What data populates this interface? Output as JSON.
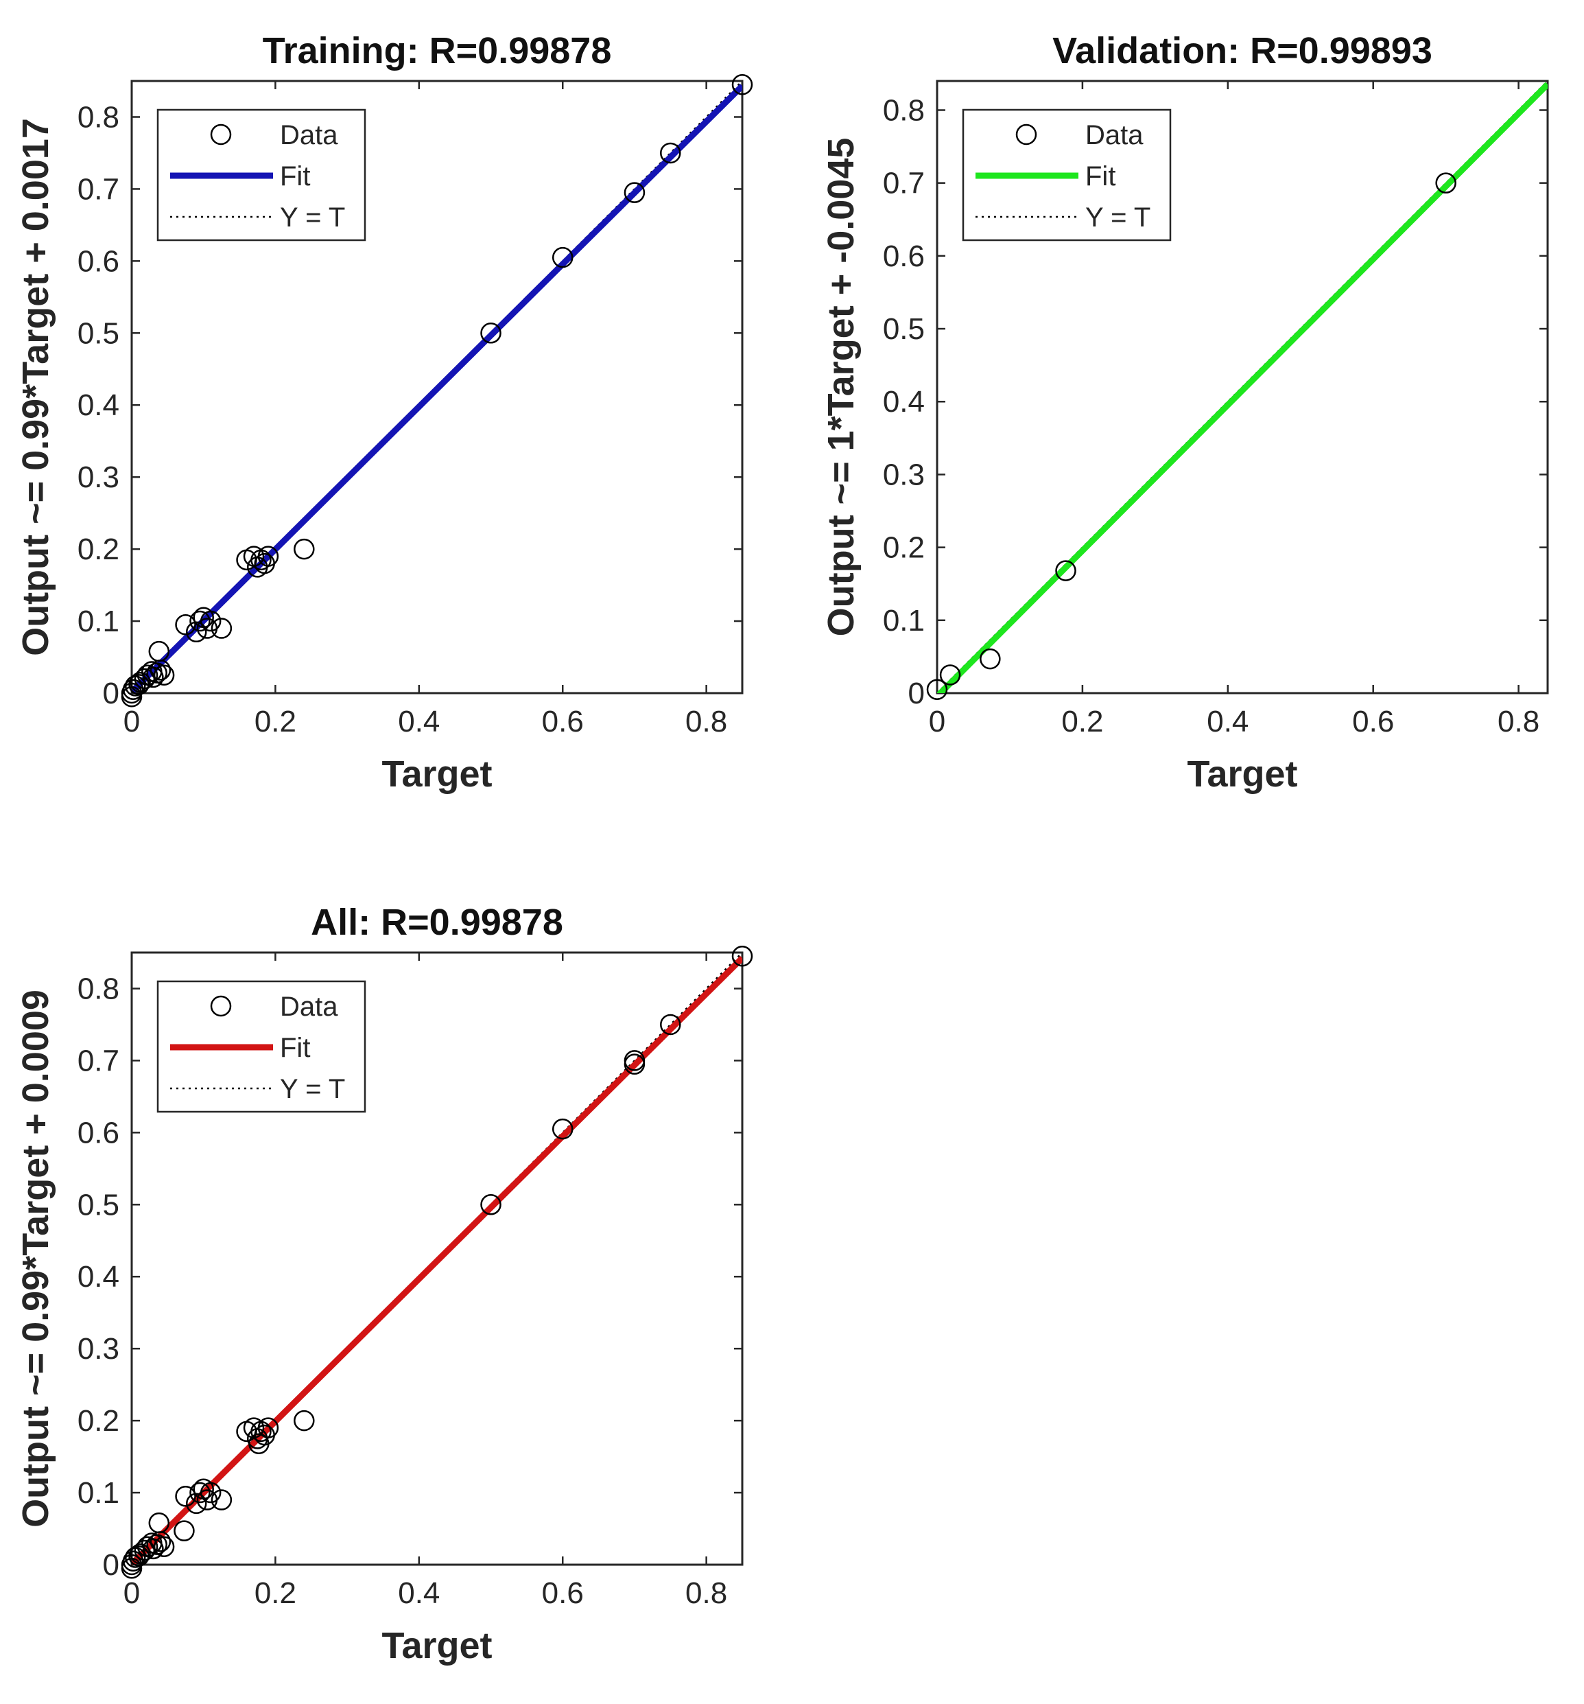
{
  "legend": {
    "data_label": "Data",
    "fit_label": "Fit",
    "yt_label": "Y = T"
  },
  "chart_data": [
    {
      "type": "scatter",
      "title": "Training: R=0.99878",
      "xlabel": "Target",
      "ylabel": "Output ~= 0.99*Target + 0.0017",
      "xlim": [
        0,
        0.85
      ],
      "ylim": [
        0,
        0.85
      ],
      "xticks": [
        "0",
        "0.2",
        "0.4",
        "0.6",
        "0.8"
      ],
      "yticks": [
        "0",
        "0.1",
        "0.2",
        "0.3",
        "0.4",
        "0.5",
        "0.6",
        "0.7",
        "0.8"
      ],
      "grid": false,
      "legend_position": "top-left",
      "fit": {
        "slope": 0.99,
        "intercept": 0.0017,
        "color": "#1414B4"
      },
      "points": [
        {
          "x": 0.0,
          "y": -0.005
        },
        {
          "x": 0.0,
          "y": 0.0
        },
        {
          "x": 0.002,
          "y": 0.005
        },
        {
          "x": 0.005,
          "y": 0.01
        },
        {
          "x": 0.01,
          "y": 0.012
        },
        {
          "x": 0.012,
          "y": 0.015
        },
        {
          "x": 0.018,
          "y": 0.02
        },
        {
          "x": 0.022,
          "y": 0.025
        },
        {
          "x": 0.028,
          "y": 0.03
        },
        {
          "x": 0.03,
          "y": 0.022
        },
        {
          "x": 0.035,
          "y": 0.028
        },
        {
          "x": 0.038,
          "y": 0.058
        },
        {
          "x": 0.04,
          "y": 0.032
        },
        {
          "x": 0.045,
          "y": 0.025
        },
        {
          "x": 0.075,
          "y": 0.095
        },
        {
          "x": 0.09,
          "y": 0.085
        },
        {
          "x": 0.095,
          "y": 0.1
        },
        {
          "x": 0.1,
          "y": 0.105
        },
        {
          "x": 0.105,
          "y": 0.09
        },
        {
          "x": 0.11,
          "y": 0.1
        },
        {
          "x": 0.125,
          "y": 0.09
        },
        {
          "x": 0.16,
          "y": 0.185
        },
        {
          "x": 0.17,
          "y": 0.19
        },
        {
          "x": 0.175,
          "y": 0.175
        },
        {
          "x": 0.18,
          "y": 0.185
        },
        {
          "x": 0.185,
          "y": 0.18
        },
        {
          "x": 0.19,
          "y": 0.19
        },
        {
          "x": 0.24,
          "y": 0.2
        },
        {
          "x": 0.5,
          "y": 0.5
        },
        {
          "x": 0.6,
          "y": 0.605
        },
        {
          "x": 0.7,
          "y": 0.695
        },
        {
          "x": 0.75,
          "y": 0.75
        },
        {
          "x": 0.85,
          "y": 0.845
        }
      ]
    },
    {
      "type": "scatter",
      "title": "Validation: R=0.99893",
      "xlabel": "Target",
      "ylabel": "Output ~= 1*Target + -0.0045",
      "xlim": [
        0,
        0.84
      ],
      "ylim": [
        0,
        0.84
      ],
      "xticks": [
        "0",
        "0.2",
        "0.4",
        "0.6",
        "0.8"
      ],
      "yticks": [
        "0",
        "0.1",
        "0.2",
        "0.3",
        "0.4",
        "0.5",
        "0.6",
        "0.7",
        "0.8"
      ],
      "grid": false,
      "legend_position": "top-left",
      "fit": {
        "slope": 1,
        "intercept": -0.0045,
        "color": "#1EE61E"
      },
      "points": [
        {
          "x": 0.0,
          "y": 0.005
        },
        {
          "x": 0.018,
          "y": 0.025
        },
        {
          "x": 0.073,
          "y": 0.047
        },
        {
          "x": 0.177,
          "y": 0.168
        },
        {
          "x": 0.7,
          "y": 0.7
        }
      ]
    },
    {
      "type": "scatter",
      "title": "All: R=0.99878",
      "xlabel": "Target",
      "ylabel": "Output ~= 0.99*Target + 0.0009",
      "xlim": [
        0,
        0.85
      ],
      "ylim": [
        0,
        0.85
      ],
      "xticks": [
        "0",
        "0.2",
        "0.4",
        "0.6",
        "0.8"
      ],
      "yticks": [
        "0",
        "0.1",
        "0.2",
        "0.3",
        "0.4",
        "0.5",
        "0.6",
        "0.7",
        "0.8"
      ],
      "grid": false,
      "legend_position": "top-left",
      "fit": {
        "slope": 0.99,
        "intercept": 0.0009,
        "color": "#D21414"
      },
      "points": [
        {
          "x": 0.0,
          "y": -0.005
        },
        {
          "x": 0.0,
          "y": 0.0
        },
        {
          "x": 0.002,
          "y": 0.005
        },
        {
          "x": 0.005,
          "y": 0.01
        },
        {
          "x": 0.01,
          "y": 0.012
        },
        {
          "x": 0.012,
          "y": 0.015
        },
        {
          "x": 0.018,
          "y": 0.02
        },
        {
          "x": 0.022,
          "y": 0.025
        },
        {
          "x": 0.028,
          "y": 0.03
        },
        {
          "x": 0.03,
          "y": 0.022
        },
        {
          "x": 0.035,
          "y": 0.028
        },
        {
          "x": 0.038,
          "y": 0.058
        },
        {
          "x": 0.04,
          "y": 0.032
        },
        {
          "x": 0.045,
          "y": 0.025
        },
        {
          "x": 0.073,
          "y": 0.047
        },
        {
          "x": 0.075,
          "y": 0.095
        },
        {
          "x": 0.09,
          "y": 0.085
        },
        {
          "x": 0.095,
          "y": 0.1
        },
        {
          "x": 0.1,
          "y": 0.105
        },
        {
          "x": 0.105,
          "y": 0.09
        },
        {
          "x": 0.11,
          "y": 0.1
        },
        {
          "x": 0.125,
          "y": 0.09
        },
        {
          "x": 0.16,
          "y": 0.185
        },
        {
          "x": 0.17,
          "y": 0.19
        },
        {
          "x": 0.175,
          "y": 0.175
        },
        {
          "x": 0.177,
          "y": 0.168
        },
        {
          "x": 0.18,
          "y": 0.185
        },
        {
          "x": 0.185,
          "y": 0.18
        },
        {
          "x": 0.19,
          "y": 0.19
        },
        {
          "x": 0.24,
          "y": 0.2
        },
        {
          "x": 0.5,
          "y": 0.5
        },
        {
          "x": 0.6,
          "y": 0.605
        },
        {
          "x": 0.7,
          "y": 0.695
        },
        {
          "x": 0.7,
          "y": 0.7
        },
        {
          "x": 0.75,
          "y": 0.75
        },
        {
          "x": 0.85,
          "y": 0.845
        }
      ]
    }
  ]
}
